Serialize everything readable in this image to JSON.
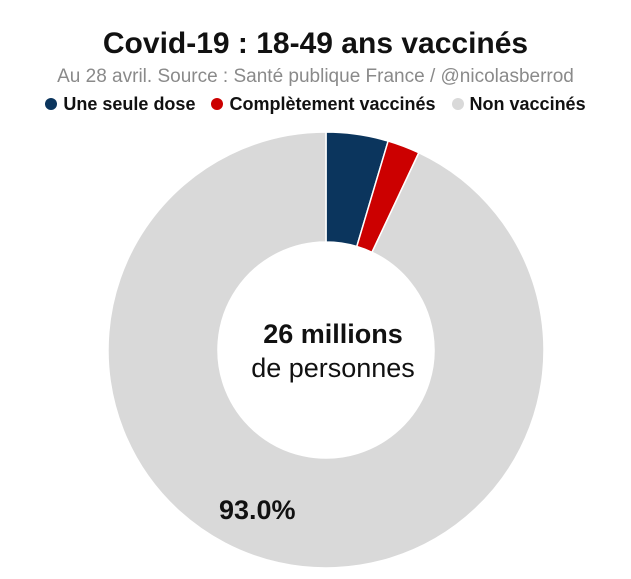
{
  "chart_data": {
    "type": "pie",
    "title": "Covid-19 : 18-49 ans vaccinés",
    "subtitle": "Au 28 avril. Source : Santé publique France / @nicolasberrod",
    "legend_position": "top",
    "center_label": {
      "line1": "26 millions",
      "line2": "de personnes"
    },
    "categories": [
      "Une seule dose",
      "Complètement vaccinés",
      "Non vaccinés"
    ],
    "values": [
      4.6,
      2.4,
      93.0
    ],
    "colors": [
      "#0b355d",
      "#cc0000",
      "#d9d9d9"
    ],
    "data_labels": [
      "",
      "",
      "93.0%"
    ]
  }
}
